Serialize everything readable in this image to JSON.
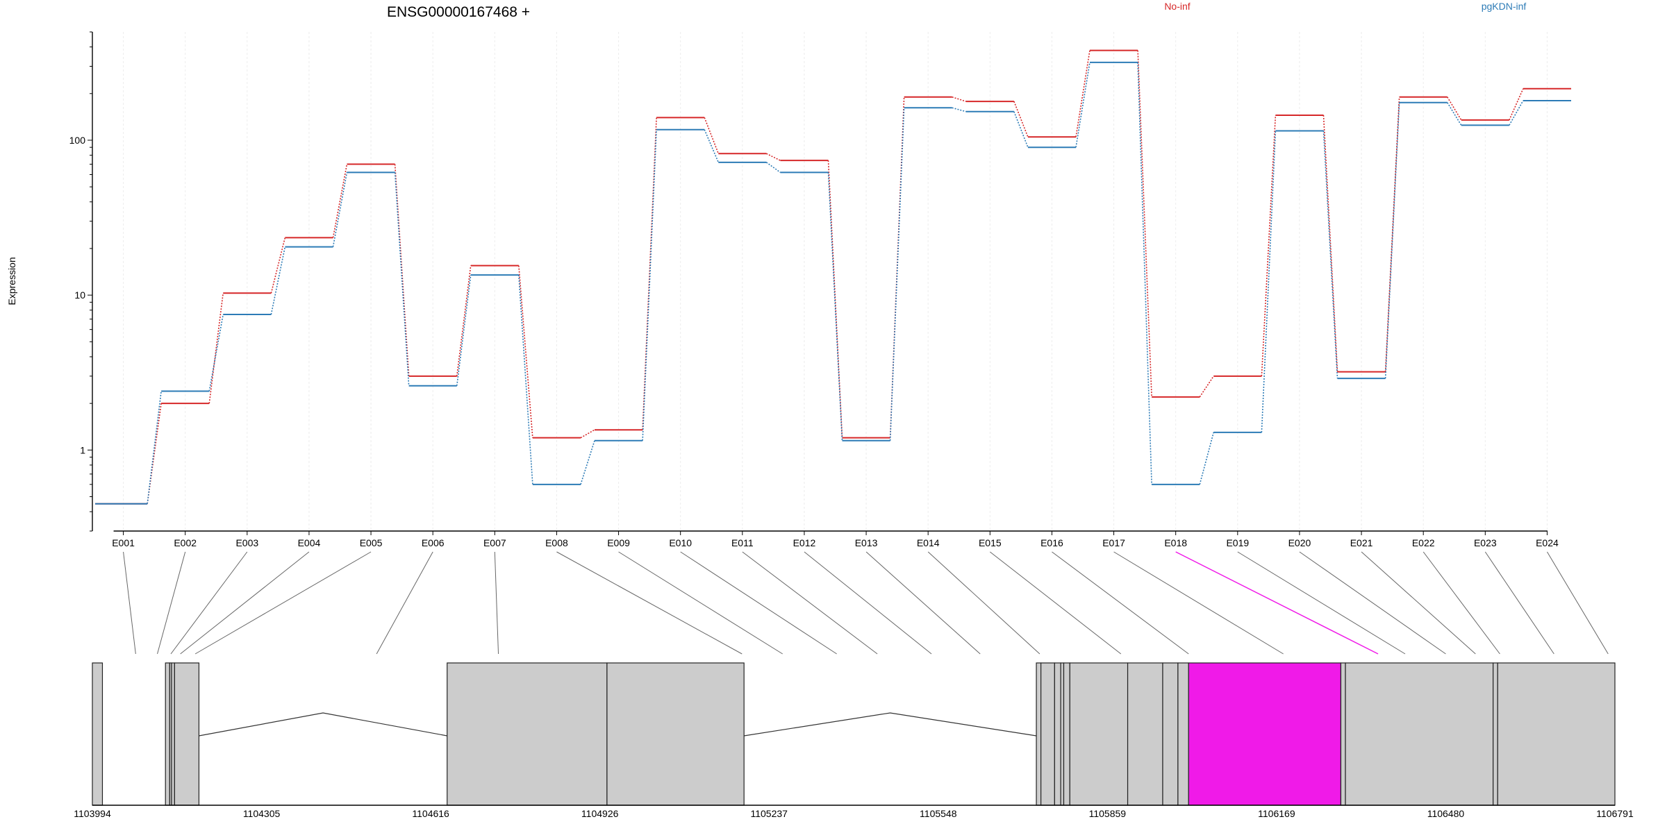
{
  "chart_data": {
    "type": "line",
    "title": "ENSG00000167468 +",
    "xlabel": "",
    "ylabel": "Expression",
    "yscale": "log",
    "ylim": [
      0.3,
      500
    ],
    "yticks": [
      1,
      10,
      100
    ],
    "ytick_labels": [
      "1",
      "10",
      "100"
    ],
    "categories": [
      "E001",
      "E002",
      "E003",
      "E004",
      "E005",
      "E006",
      "E007",
      "E008",
      "E009",
      "E010",
      "E011",
      "E012",
      "E013",
      "E014",
      "E015",
      "E016",
      "E017",
      "E018",
      "E019",
      "E020",
      "E021",
      "E022",
      "E023",
      "E024"
    ],
    "grid": true,
    "legend_position": "top-right",
    "colors": {
      "no_inf": "#d62728",
      "pgkdn_inf": "#2c7bb6",
      "highlight": "#f01ae8",
      "exon": "#cccccc"
    },
    "series": [
      {
        "name": "No-inf",
        "color": "#d62728",
        "values": [
          0.45,
          2.0,
          10.3,
          23.5,
          70,
          3.0,
          15.5,
          1.2,
          1.35,
          140,
          82,
          74,
          1.2,
          190,
          178,
          105,
          380,
          2.2,
          3.0,
          145,
          3.2,
          190,
          135,
          215
        ]
      },
      {
        "name": "pgKDN-inf",
        "color": "#2c7bb6",
        "values": [
          0.45,
          2.4,
          7.5,
          20.5,
          62,
          2.6,
          13.5,
          0.6,
          1.15,
          117,
          72,
          62,
          1.15,
          162,
          153,
          90,
          318,
          0.6,
          1.3,
          115,
          2.9,
          175,
          125,
          180
        ]
      }
    ],
    "highlighted_exon": "E018",
    "genomic_axis": {
      "ticks": [
        "1103994",
        "1104305",
        "1104616",
        "1104926",
        "1105237",
        "1105548",
        "1105859",
        "1106169",
        "1106480",
        "1106791"
      ]
    },
    "gene_model": {
      "exon_blocks": [
        [
          0.0,
          0.66
        ],
        [
          4.8,
          5.08
        ],
        [
          5.08,
          5.2
        ],
        [
          5.2,
          5.4
        ],
        [
          5.4,
          7.0
        ],
        [
          23.3,
          33.8
        ],
        [
          33.8,
          42.8
        ],
        [
          62.0,
          62.3
        ],
        [
          62.3,
          63.2
        ],
        [
          63.2,
          63.6
        ],
        [
          63.6,
          63.8
        ],
        [
          63.8,
          64.2
        ],
        [
          64.2,
          68.0
        ],
        [
          68.0,
          70.3
        ],
        [
          70.3,
          71.3
        ],
        [
          71.3,
          72.0
        ],
        [
          72.0,
          82.0
        ],
        [
          82.0,
          82.3
        ],
        [
          82.3,
          92.0
        ],
        [
          92.0,
          92.3
        ],
        [
          92.3,
          100.0
        ]
      ],
      "introns": [
        [
          7.0,
          23.3
        ],
        [
          42.8,
          62.0
        ],
        [
          82.0,
          88.6
        ],
        [
          92.0,
          100.0
        ]
      ],
      "exon_anchor_bins": [
        3.2,
        4.8,
        5.8,
        6.5,
        7.6,
        21.0,
        30.0,
        48.0,
        51.0,
        55.0,
        58.0,
        62.0,
        65.6,
        70.0,
        76.0,
        81.0,
        88.0,
        95.0,
        97.0,
        100.0,
        102.2,
        104.0,
        108.0,
        112.0
      ]
    }
  }
}
